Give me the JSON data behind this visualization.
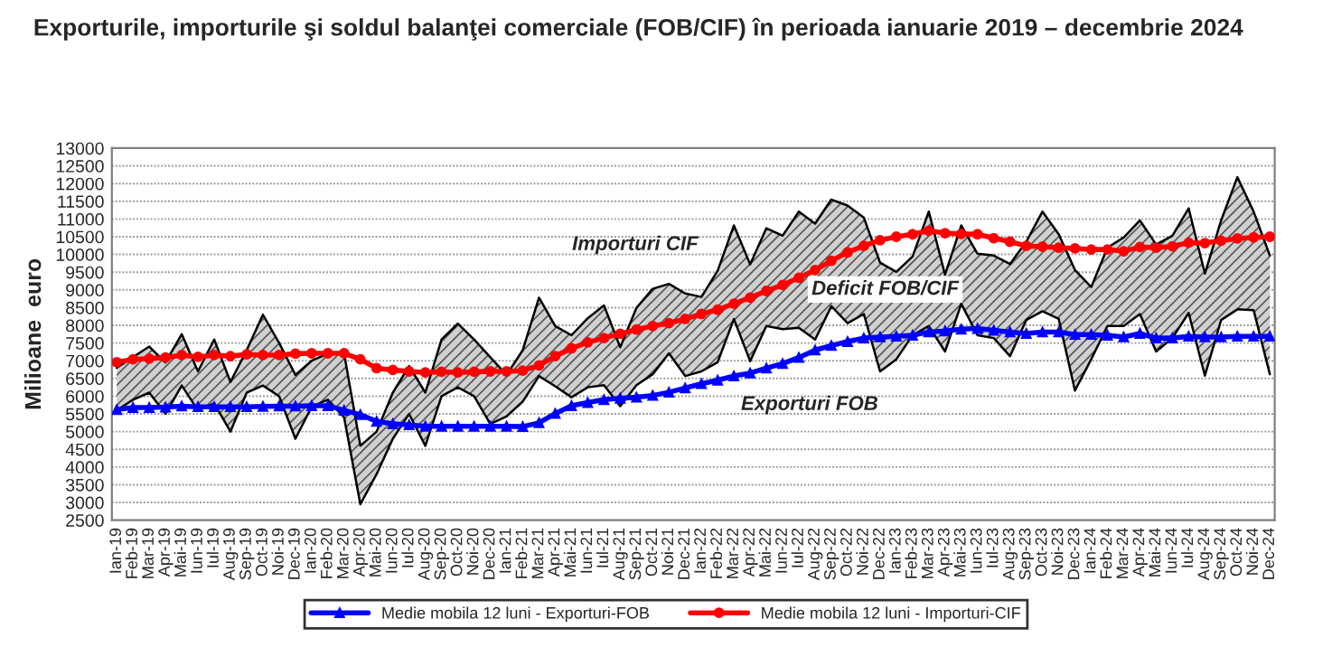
{
  "chart_data": {
    "type": "line",
    "title": "Exporturile, importurile şi soldul balanţei comerciale (FOB/CIF) în perioada ianuarie 2019 – decembrie 2024",
    "ylabel": "Milioane  euro",
    "categories": [
      "Ian-19",
      "Feb-19",
      "Mar-19",
      "Apr-19",
      "Mai-19",
      "Iun-19",
      "Iul-19",
      "Aug-19",
      "Sep-19",
      "Oct-19",
      "Noi-19",
      "Dec-19",
      "Ian-20",
      "Feb-20",
      "Mar-20",
      "Apr-20",
      "Mai-20",
      "Iun-20",
      "Iul-20",
      "Aug-20",
      "Sep-20",
      "Oct-20",
      "Noi-20",
      "Dec-20",
      "Ian-21",
      "Feb-21",
      "Mar-21",
      "Apr-21",
      "Mai-21",
      "Iun-21",
      "Iul-21",
      "Aug-21",
      "Sep-21",
      "Oct-21",
      "Noi-21",
      "Dec-21",
      "Ian-22",
      "Feb-22",
      "Mar-22",
      "Apr-22",
      "Mai-22",
      "Iun-22",
      "Iul-22",
      "Aug-22",
      "Sep-22",
      "Oct-22",
      "Noi-22",
      "Dec-22",
      "Ian-23",
      "Feb-23",
      "Mar-23",
      "Apr-23",
      "Mai-23",
      "Iun-23",
      "Iul-23",
      "Aug-23",
      "Sep-23",
      "Oct-23",
      "Noi-23",
      "Dec-23",
      "Ian-24",
      "Feb-24",
      "Mar-24",
      "Apr-24",
      "Mai-24",
      "Iun-24",
      "Iul-24",
      "Aug-24",
      "Sep-24",
      "Oct-24",
      "Noi-24",
      "Dec-24"
    ],
    "series": [
      {
        "type": "area",
        "color": "#000000",
        "marker": "none",
        "values": [
          6800,
          7100,
          7400,
          6950,
          7750,
          6700,
          7600,
          6400,
          7300,
          8300,
          7500,
          6600,
          7000,
          7200,
          7200,
          4600,
          5000,
          6100,
          6850,
          6100,
          7600,
          8050,
          7600,
          7100,
          6600,
          7300,
          8780,
          7980,
          7720,
          8200,
          8560,
          7380,
          8490,
          9030,
          9170,
          8900,
          8800,
          9540,
          10820,
          9720,
          10740,
          10530,
          11210,
          10870,
          11550,
          11380,
          11040,
          9770,
          9510,
          9940,
          11210,
          9430,
          10820,
          10020,
          9970,
          9730,
          10360,
          11210,
          10570,
          9560,
          9080,
          10190,
          10480,
          10960,
          10280,
          10530,
          11300,
          9460,
          10960,
          12180,
          11210,
          9970
        ]
      },
      {
        "color": "#000000",
        "marker": "none",
        "values": [
          5600,
          5900,
          6100,
          5500,
          6300,
          5600,
          5800,
          5000,
          6100,
          6300,
          6000,
          4800,
          5700,
          5900,
          5400,
          2950,
          3800,
          4800,
          5500,
          4600,
          6000,
          6250,
          6000,
          5220,
          5430,
          5850,
          6570,
          6280,
          5970,
          6250,
          6310,
          5720,
          6310,
          6620,
          7210,
          6570,
          6700,
          6960,
          8180,
          6990,
          7980,
          7890,
          7930,
          7600,
          8540,
          8060,
          8320,
          6700,
          7040,
          7720,
          7980,
          7260,
          8610,
          7720,
          7640,
          7130,
          8150,
          8400,
          8180,
          6160,
          7040,
          7980,
          7980,
          8320,
          7260,
          7640,
          8350,
          6580,
          8150,
          8450,
          8430,
          6620
        ]
      },
      {
        "name": "Medie mobila 12 luni - Exporturi-FOB",
        "color": "#0000ff",
        "marker": "triangle",
        "values": [
          5620,
          5680,
          5680,
          5690,
          5720,
          5700,
          5700,
          5700,
          5700,
          5710,
          5720,
          5720,
          5730,
          5730,
          5600,
          5480,
          5290,
          5220,
          5190,
          5150,
          5150,
          5150,
          5150,
          5150,
          5150,
          5140,
          5250,
          5510,
          5730,
          5820,
          5900,
          5940,
          5970,
          6020,
          6110,
          6230,
          6350,
          6450,
          6570,
          6650,
          6790,
          6920,
          7090,
          7300,
          7430,
          7540,
          7640,
          7670,
          7690,
          7720,
          7810,
          7840,
          7890,
          7910,
          7860,
          7810,
          7770,
          7810,
          7810,
          7740,
          7740,
          7720,
          7670,
          7770,
          7640,
          7640,
          7690,
          7670,
          7670,
          7690,
          7690,
          7690
        ]
      },
      {
        "name": "Medie mobila 12 luni - Importuri-CIF",
        "color": "#ff0000",
        "marker": "circle",
        "values": [
          6960,
          7040,
          7060,
          7090,
          7160,
          7110,
          7160,
          7130,
          7180,
          7160,
          7160,
          7200,
          7210,
          7210,
          7210,
          7040,
          6790,
          6740,
          6700,
          6670,
          6690,
          6670,
          6690,
          6700,
          6700,
          6720,
          6870,
          7130,
          7350,
          7520,
          7640,
          7760,
          7880,
          7980,
          8060,
          8180,
          8320,
          8440,
          8610,
          8780,
          8970,
          9140,
          9340,
          9560,
          9820,
          10060,
          10240,
          10400,
          10500,
          10570,
          10670,
          10600,
          10580,
          10570,
          10460,
          10360,
          10240,
          10220,
          10190,
          10170,
          10140,
          10140,
          10090,
          10210,
          10190,
          10230,
          10330,
          10320,
          10390,
          10450,
          10480,
          10500
        ]
      }
    ],
    "ylim": [
      2500,
      13000
    ],
    "yticks": [
      2500,
      3000,
      3500,
      4000,
      4500,
      5000,
      5500,
      6000,
      6500,
      7000,
      7500,
      8000,
      8500,
      9000,
      9500,
      10000,
      10500,
      11000,
      11500,
      12000,
      12500,
      13000
    ],
    "grid": "y",
    "legend": "bottom",
    "annotations": [
      "Importuri CIF",
      "Deficit FOB/CIF",
      "Exporturi FOB"
    ]
  }
}
